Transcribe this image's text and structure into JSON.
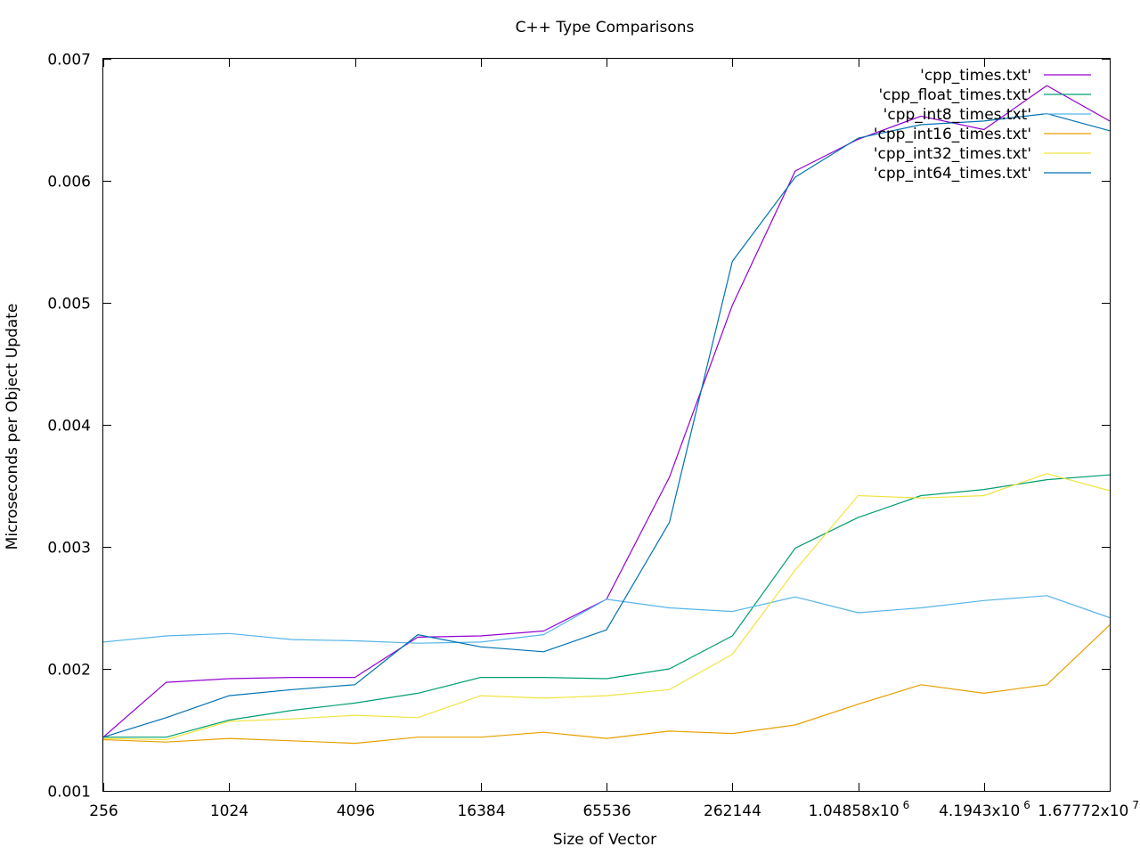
{
  "chart_data": {
    "type": "line",
    "title": "C++ Type Comparisons",
    "xlabel": "Size of Vector",
    "ylabel": "Microseconds per Object Update",
    "x_scale": "log2",
    "xlim": [
      256,
      16777216
    ],
    "ylim": [
      0.001,
      0.007
    ],
    "grid": false,
    "legend_position": "top-right",
    "x_ticks": [
      {
        "value": 256,
        "label": "256",
        "exp": ""
      },
      {
        "value": 1024,
        "label": "1024",
        "exp": ""
      },
      {
        "value": 4096,
        "label": "4096",
        "exp": ""
      },
      {
        "value": 16384,
        "label": "16384",
        "exp": ""
      },
      {
        "value": 65536,
        "label": "65536",
        "exp": ""
      },
      {
        "value": 262144,
        "label": "262144",
        "exp": ""
      },
      {
        "value": 1048576,
        "label": "1.04858x10",
        "exp": "6"
      },
      {
        "value": 4194304,
        "label": "4.1943x10",
        "exp": "6"
      },
      {
        "value": 16777216,
        "label": "1.67772x10",
        "exp": "7"
      }
    ],
    "y_ticks": [
      {
        "value": 0.001,
        "label": "0.001"
      },
      {
        "value": 0.002,
        "label": "0.002"
      },
      {
        "value": 0.003,
        "label": "0.003"
      },
      {
        "value": 0.004,
        "label": "0.004"
      },
      {
        "value": 0.005,
        "label": "0.005"
      },
      {
        "value": 0.006,
        "label": "0.006"
      },
      {
        "value": 0.007,
        "label": "0.007"
      }
    ],
    "x": [
      256,
      512,
      1024,
      2048,
      4096,
      8192,
      16384,
      32768,
      65536,
      131072,
      262144,
      524288,
      1048576,
      2097152,
      4194304,
      8388608,
      16777216
    ],
    "series": [
      {
        "name": "'cpp_times.txt'",
        "color": "#9400d3",
        "values": [
          0.00144,
          0.00189,
          0.00192,
          0.00193,
          0.00193,
          0.00226,
          0.00227,
          0.00231,
          0.00257,
          0.00357,
          0.00498,
          0.00608,
          0.00634,
          0.00653,
          0.00642,
          0.00678,
          0.00649
        ]
      },
      {
        "name": "'cpp_float_times.txt'",
        "color": "#009e73",
        "values": [
          0.00144,
          0.00144,
          0.00158,
          0.00166,
          0.00172,
          0.0018,
          0.00193,
          0.00193,
          0.00192,
          0.002,
          0.00227,
          0.00299,
          0.00324,
          0.00342,
          0.00347,
          0.00355,
          0.00359
        ]
      },
      {
        "name": "'cpp_int8_times.txt'",
        "color": "#56b4e9",
        "values": [
          0.00222,
          0.00227,
          0.00229,
          0.00224,
          0.00223,
          0.00221,
          0.00222,
          0.00228,
          0.00257,
          0.0025,
          0.00247,
          0.00259,
          0.00246,
          0.0025,
          0.00256,
          0.0026,
          0.00242
        ]
      },
      {
        "name": "'cpp_int16_times.txt'",
        "color": "#e69f00",
        "values": [
          0.00142,
          0.0014,
          0.00143,
          0.00141,
          0.00139,
          0.00144,
          0.00144,
          0.00148,
          0.00143,
          0.00149,
          0.00147,
          0.00154,
          0.00171,
          0.00187,
          0.0018,
          0.00187,
          0.00236
        ]
      },
      {
        "name": "'cpp_int32_times.txt'",
        "color": "#f0e442",
        "values": [
          0.00143,
          0.00142,
          0.00157,
          0.00159,
          0.00162,
          0.0016,
          0.00178,
          0.00176,
          0.00178,
          0.00183,
          0.00212,
          0.00281,
          0.00342,
          0.0034,
          0.00342,
          0.0036,
          0.00346
        ]
      },
      {
        "name": "'cpp_int64_times.txt'",
        "color": "#0072b2",
        "values": [
          0.00144,
          0.0016,
          0.00178,
          0.00183,
          0.00187,
          0.00228,
          0.00218,
          0.00214,
          0.00232,
          0.0032,
          0.00534,
          0.00603,
          0.00635,
          0.00646,
          0.00649,
          0.00655,
          0.00641
        ]
      }
    ]
  }
}
